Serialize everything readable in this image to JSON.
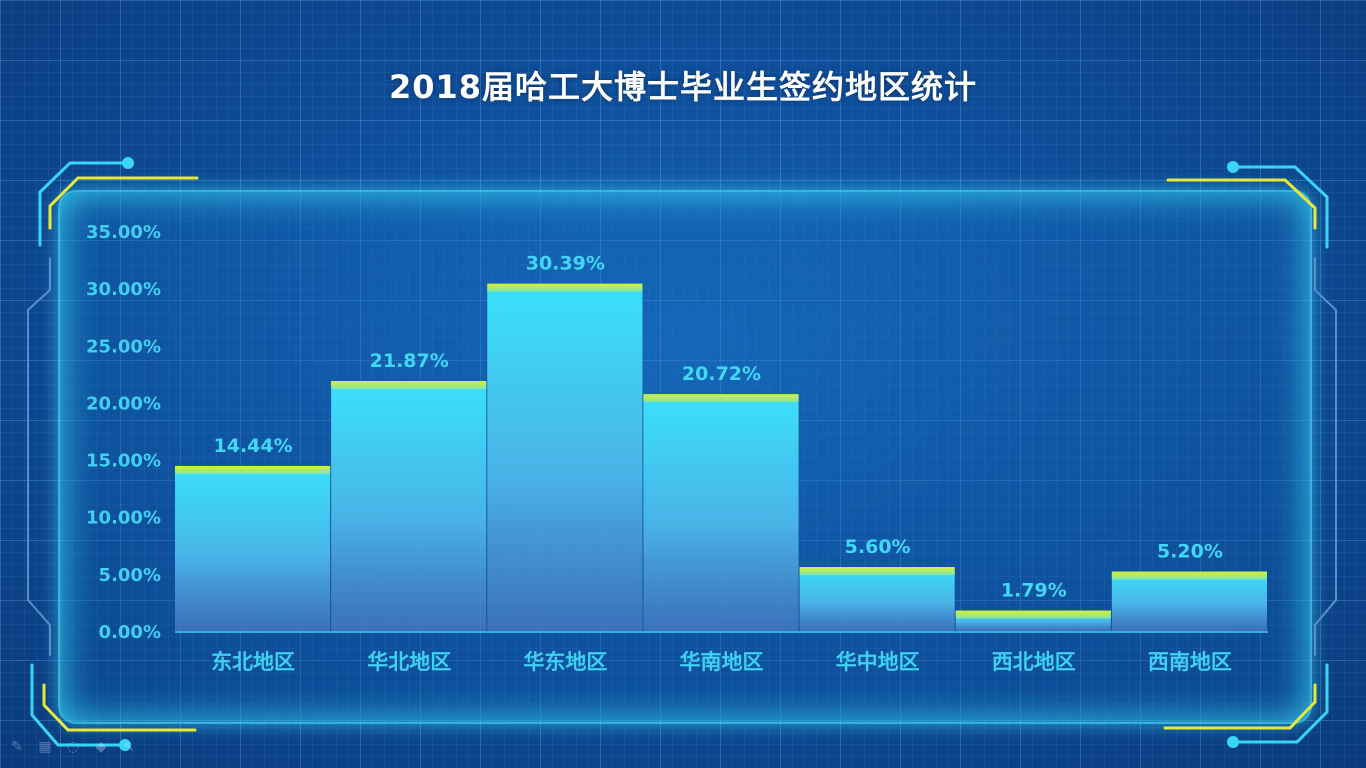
{
  "page": {
    "title": "2018届哈工大博士毕业生签约地区统计"
  },
  "colors": {
    "bar_top": "#3ae1fc",
    "bar_bottom": "#4a7cc4",
    "bar_cap": "#c7ee3a",
    "label": "#3fd0f2",
    "frame_glow": "#3ce6ff",
    "accent_yellow": "#e6e83a"
  },
  "chart_data": {
    "type": "bar",
    "title": "2018届哈工大博士毕业生签约地区统计",
    "categories": [
      "东北地区",
      "华北地区",
      "华东地区",
      "华南地区",
      "华中地区",
      "西北地区",
      "西南地区"
    ],
    "values": [
      14.44,
      21.87,
      30.39,
      20.72,
      5.6,
      1.79,
      5.2
    ],
    "value_labels": [
      "14.44%",
      "21.87%",
      "30.39%",
      "20.72%",
      "5.60%",
      "1.79%",
      "5.20%"
    ],
    "y_ticks": [
      "0.00%",
      "5.00%",
      "10.00%",
      "15.00%",
      "20.00%",
      "25.00%",
      "30.00%",
      "35.00%"
    ],
    "ylim": [
      0,
      35
    ],
    "grid": false,
    "legend": "none"
  },
  "toolbar": {
    "icons": [
      "pen-icon",
      "slide-icon",
      "circle-icon",
      "eraser-icon",
      "pointer-icon"
    ]
  }
}
